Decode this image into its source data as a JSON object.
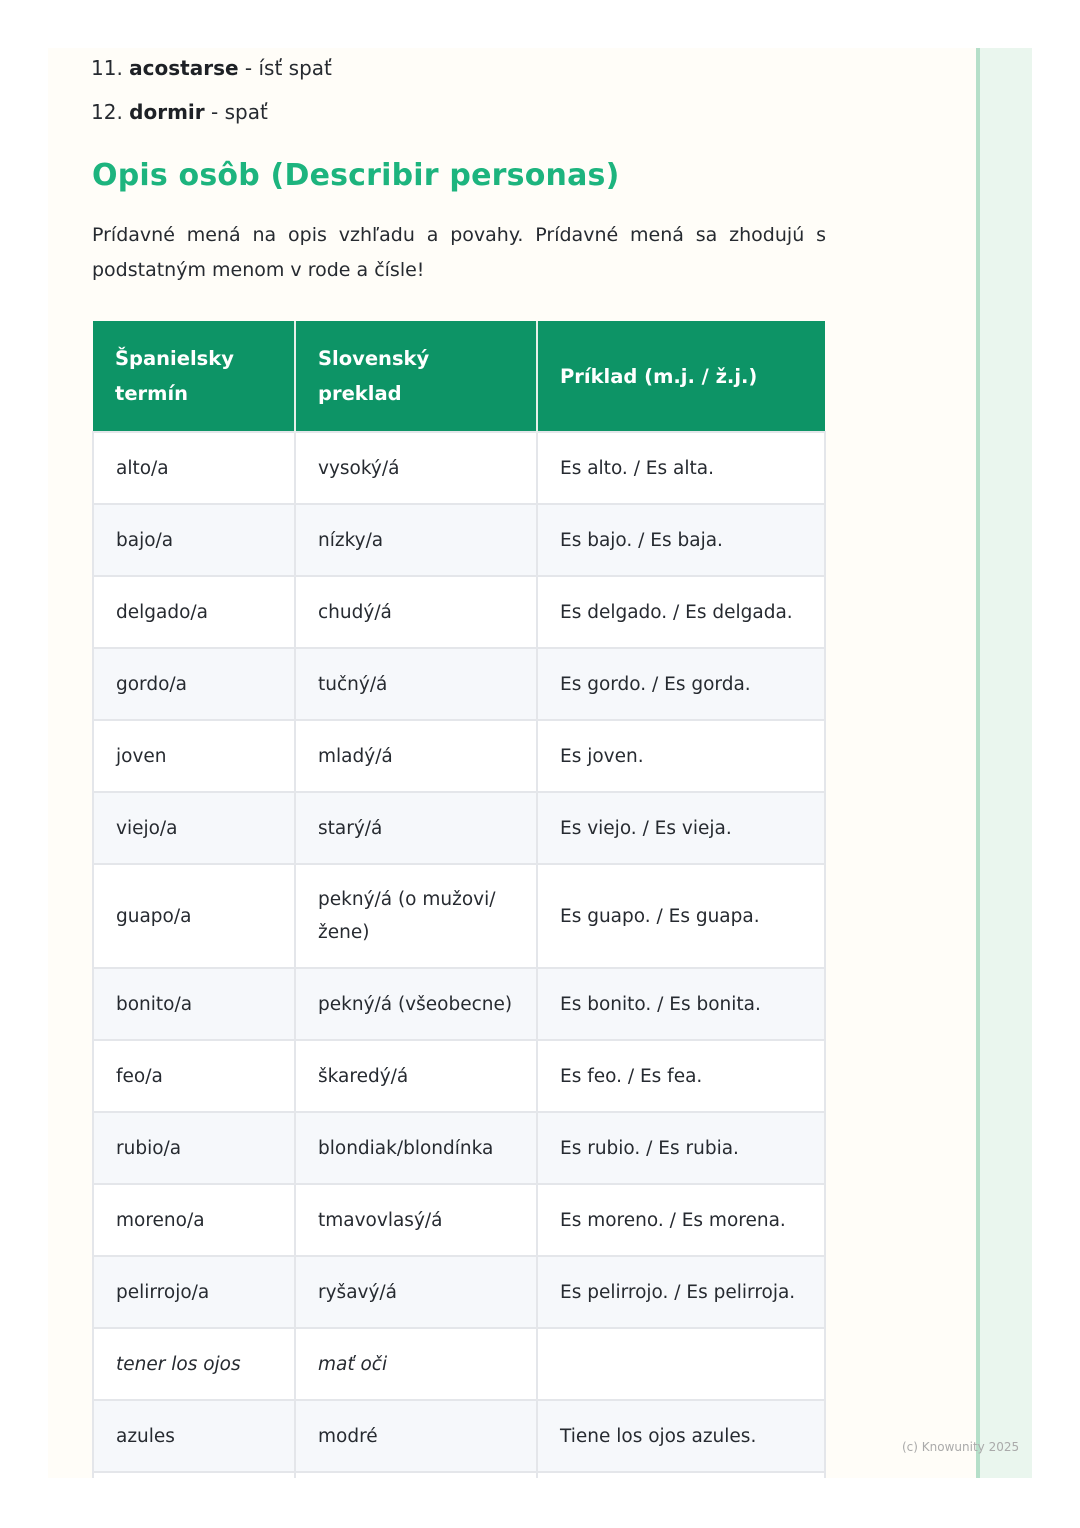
{
  "list": [
    {
      "num": "11.",
      "term": "acostarse",
      "translation": "- ísť spať"
    },
    {
      "num": "12.",
      "term": "dormir",
      "translation": "- spať"
    }
  ],
  "heading": "Opis osôb (Describir personas)",
  "intro": "Prídavné mená na opis vzhľadu a povahy. Prídavné mená sa zhodujú s podstatným menom v rode a čísle!",
  "table": {
    "headers": [
      "Španielsky termín",
      "Slovenský preklad",
      "Príklad (m.j. / ž.j.)"
    ],
    "rows": [
      [
        "alto/a",
        "vysoký/á",
        "Es alto. / Es alta."
      ],
      [
        "bajo/a",
        "nízky/a",
        "Es bajo. / Es baja."
      ],
      [
        "delgado/a",
        "chudý/á",
        "Es delgado. / Es delgada."
      ],
      [
        "gordo/a",
        "tučný/á",
        "Es gordo. / Es gorda."
      ],
      [
        "joven",
        "mladý/á",
        "Es joven."
      ],
      [
        "viejo/a",
        "starý/á",
        "Es viejo. / Es vieja."
      ],
      [
        "guapo/a",
        "pekný/á (o mužovi/ žene)",
        "Es guapo. / Es guapa."
      ],
      [
        "bonito/a",
        "pekný/á (všeobecne)",
        "Es bonito. / Es bonita."
      ],
      [
        "feo/a",
        "škaredý/á",
        "Es feo. / Es fea."
      ],
      [
        "rubio/a",
        "blondiak/blondínka",
        "Es rubio. / Es rubia."
      ],
      [
        "moreno/a",
        "tmavovlasý/á",
        "Es moreno. / Es morena."
      ],
      [
        "pelirrojo/a",
        "ryšavý/á",
        "Es pelirrojo. / Es pelirroja."
      ],
      [
        "tener los ojos",
        "mať oči",
        ""
      ],
      [
        "azules",
        "modré",
        "Tiene los ojos azules."
      ],
      [
        "",
        "",
        ""
      ]
    ]
  },
  "footer": "(c) Knowunity 2025",
  "colors": {
    "accent": "#1db47e",
    "header_bg": "#0d9466",
    "strip": "#eaf6ee"
  }
}
